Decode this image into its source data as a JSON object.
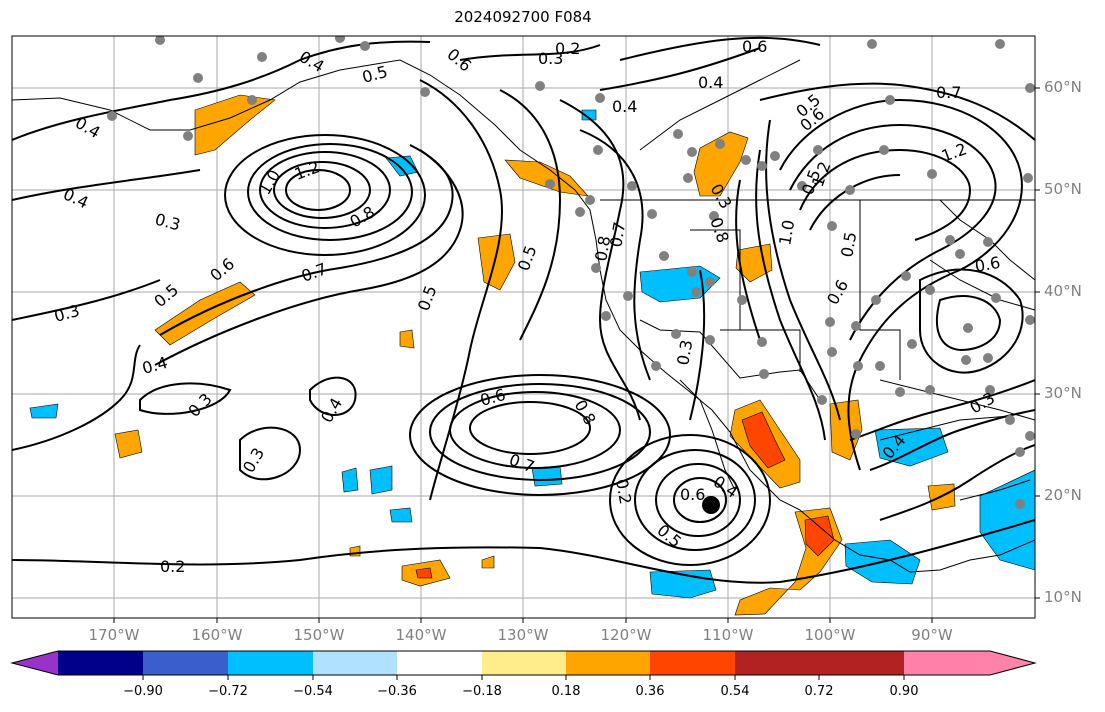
{
  "title": "2024092700 F084",
  "lat_labels": [
    "60°N",
    "50°N",
    "40°N",
    "30°N",
    "20°N",
    "10°N"
  ],
  "lon_labels": [
    "170°W",
    "160°W",
    "150°W",
    "140°W",
    "130°W",
    "120°W",
    "110°W",
    "100°W",
    "90°W"
  ],
  "colorbar": {
    "ticks": [
      "−0.90",
      "−0.72",
      "−0.54",
      "−0.36",
      "−0.18",
      "0.18",
      "0.36",
      "0.54",
      "0.72",
      "0.90"
    ],
    "colors": [
      "#9932cc",
      "#00008b",
      "#3a5fcd",
      "#00bfff",
      "#b0e2ff",
      "#ffffff",
      "#ffec8b",
      "#ffa500",
      "#ff4500",
      "#b22222",
      "#ff82ab"
    ]
  },
  "contour_labels": [
    "0.4",
    "0.5",
    "0.6",
    "0.2",
    "0.3",
    "0.6",
    "0.4",
    "0.7",
    "0.4",
    "0.5",
    "1.2",
    "0.3",
    "1.0",
    "1.2",
    "0.4",
    "0.8",
    "0.7",
    "0.6",
    "0.5",
    "0.3",
    "0.4",
    "0.5",
    "0.5",
    "0.3",
    "0.4",
    "0.7",
    "0.8",
    "0.6",
    "0.8",
    "0.3",
    "0.5",
    "1.2",
    "1.0",
    "0.6",
    "0.5",
    "0.6",
    "0.7",
    "0.6",
    "0.8",
    "0.3",
    "0.2",
    "0.4",
    "0.6",
    "0.5",
    "0.4",
    "0.4",
    "0.3",
    "0.3",
    "0.2"
  ]
}
